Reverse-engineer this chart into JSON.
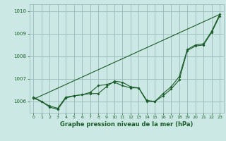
{
  "title": "Graphe pression niveau de la mer (hPa)",
  "bg_color": "#cce8e4",
  "grid_color": "#99bbbb",
  "line_color": "#1a5c2a",
  "xlim": [
    -0.5,
    23.5
  ],
  "ylim": [
    1005.5,
    1010.3
  ],
  "yticks": [
    1006,
    1007,
    1008,
    1009,
    1010
  ],
  "xticks": [
    0,
    1,
    2,
    3,
    4,
    5,
    6,
    7,
    8,
    9,
    10,
    11,
    12,
    13,
    14,
    15,
    16,
    17,
    18,
    19,
    20,
    21,
    22,
    23
  ],
  "series1_x": [
    0,
    1,
    2,
    3,
    4,
    5,
    6,
    7,
    8,
    9,
    10,
    11,
    12,
    13,
    14,
    15,
    16,
    17,
    18,
    19,
    20,
    21,
    22,
    23
  ],
  "series1_y": [
    1006.2,
    1006.0,
    1005.8,
    1005.7,
    1006.2,
    1006.25,
    1006.3,
    1006.4,
    1006.7,
    1006.75,
    1006.85,
    1006.7,
    1006.6,
    1006.6,
    1006.05,
    1006.0,
    1006.35,
    1006.65,
    1007.1,
    1008.3,
    1008.5,
    1008.55,
    1009.1,
    1009.85
  ],
  "series2_x": [
    0,
    1,
    2,
    3,
    4,
    5,
    6,
    7,
    8,
    9,
    10,
    11,
    12,
    13,
    14,
    15,
    16,
    17,
    18,
    19,
    20,
    21,
    22,
    23
  ],
  "series2_y": [
    1006.15,
    1006.0,
    1005.75,
    1005.65,
    1006.15,
    1006.25,
    1006.3,
    1006.35,
    1006.35,
    1006.65,
    1006.9,
    1006.85,
    1006.65,
    1006.6,
    1006.0,
    1006.0,
    1006.25,
    1006.55,
    1006.95,
    1008.25,
    1008.45,
    1008.5,
    1009.05,
    1009.78
  ],
  "trend_x": [
    0,
    23
  ],
  "trend_y": [
    1006.1,
    1009.85
  ]
}
